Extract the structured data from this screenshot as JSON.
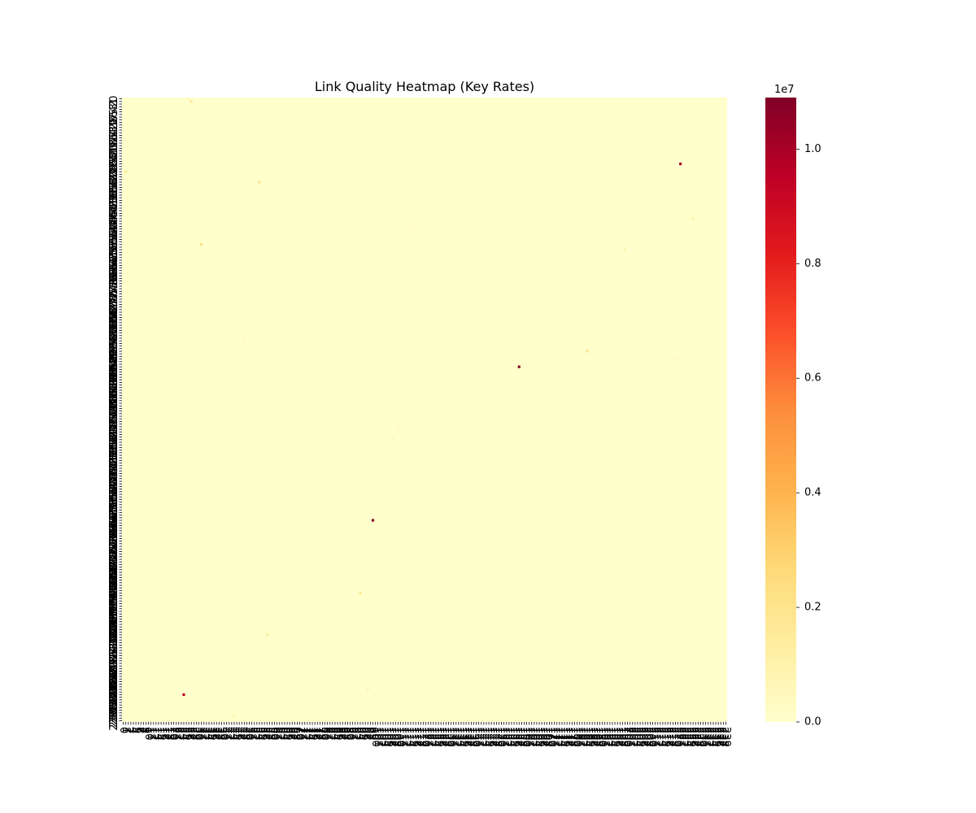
{
  "chart_data": {
    "type": "heatmap",
    "title": "Link Quality Heatmap (Key Rates)",
    "rows": 240,
    "cols": 240,
    "row_ticks": "0..239 (one tick per node index)",
    "col_ticks": "0..239 (one tick per node index)",
    "background_value": 0,
    "colormap": "YlOrRd",
    "colorbar": {
      "min": 0,
      "max": 1.09,
      "scale_label": "1e7",
      "ticks": [
        0.0,
        0.2,
        0.4,
        0.6,
        0.8,
        1.0
      ],
      "tick_labels": [
        "0.0",
        "0.2",
        "0.4",
        "0.6",
        "0.8",
        "1.0"
      ]
    },
    "cells": [
      {
        "row": 25,
        "col": 221,
        "value": 1.0
      },
      {
        "row": 103,
        "col": 157,
        "value": 1.08
      },
      {
        "row": 162,
        "col": 99,
        "value": 1.09
      },
      {
        "row": 229,
        "col": 24,
        "value": 0.95
      },
      {
        "row": 1,
        "col": 27,
        "value": 0.2
      },
      {
        "row": 0,
        "col": 26,
        "value": 0.05
      },
      {
        "row": 28,
        "col": 1,
        "value": 0.15
      },
      {
        "row": 32,
        "col": 54,
        "value": 0.18
      },
      {
        "row": 46,
        "col": 226,
        "value": 0.12
      },
      {
        "row": 56,
        "col": 31,
        "value": 0.25
      },
      {
        "row": 58,
        "col": 199,
        "value": 0.08
      },
      {
        "row": 97,
        "col": 184,
        "value": 0.2
      },
      {
        "row": 100,
        "col": 220,
        "value": 0.05
      },
      {
        "row": 127,
        "col": 109,
        "value": 0.06
      },
      {
        "row": 131,
        "col": 107,
        "value": 0.07
      },
      {
        "row": 190,
        "col": 94,
        "value": 0.18
      },
      {
        "row": 206,
        "col": 57,
        "value": 0.15
      },
      {
        "row": 237,
        "col": 44,
        "value": 0.1
      },
      {
        "row": 227,
        "col": 97,
        "value": 0.08
      },
      {
        "row": 93,
        "col": 48,
        "value": 0.05
      },
      {
        "row": 35,
        "col": 65,
        "value": 0.03
      },
      {
        "row": 49,
        "col": 115,
        "value": 0.04
      },
      {
        "row": 114,
        "col": 123,
        "value": 0.03
      },
      {
        "row": 101,
        "col": 109,
        "value": 0.03
      }
    ]
  }
}
